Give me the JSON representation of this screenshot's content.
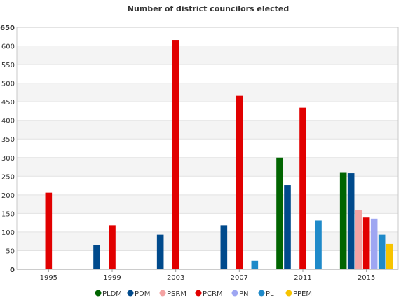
{
  "chart_data": {
    "type": "bar",
    "title": "Number of district councilors elected",
    "xlabel": "",
    "ylabel": "",
    "ylim": [
      0,
      650
    ],
    "yticks": [
      0,
      50,
      100,
      150,
      200,
      250,
      300,
      350,
      400,
      450,
      500,
      550,
      600,
      650
    ],
    "categories": [
      "1995",
      "1999",
      "2003",
      "2007",
      "2011",
      "2015"
    ],
    "grid": "horizontal alternating bands",
    "legend_position": "bottom",
    "series": [
      {
        "name": "PLDM",
        "color": "#006400",
        "values": [
          null,
          null,
          null,
          null,
          300,
          259
        ]
      },
      {
        "name": "PDM",
        "color": "#004a8c",
        "values": [
          null,
          65,
          93,
          118,
          226,
          258
        ]
      },
      {
        "name": "PSRM",
        "color": "#f4a3a3",
        "values": [
          null,
          null,
          null,
          null,
          null,
          160
        ]
      },
      {
        "name": "PCRM",
        "color": "#e10000",
        "values": [
          206,
          118,
          616,
          466,
          434,
          139
        ]
      },
      {
        "name": "PN",
        "color": "#9ea6f2",
        "values": [
          null,
          null,
          null,
          null,
          null,
          136
        ]
      },
      {
        "name": "PL",
        "color": "#1f8ac9",
        "values": [
          null,
          null,
          null,
          23,
          131,
          93
        ]
      },
      {
        "name": "PPEM",
        "color": "#f7c400",
        "values": [
          null,
          null,
          null,
          null,
          null,
          68
        ]
      }
    ]
  }
}
